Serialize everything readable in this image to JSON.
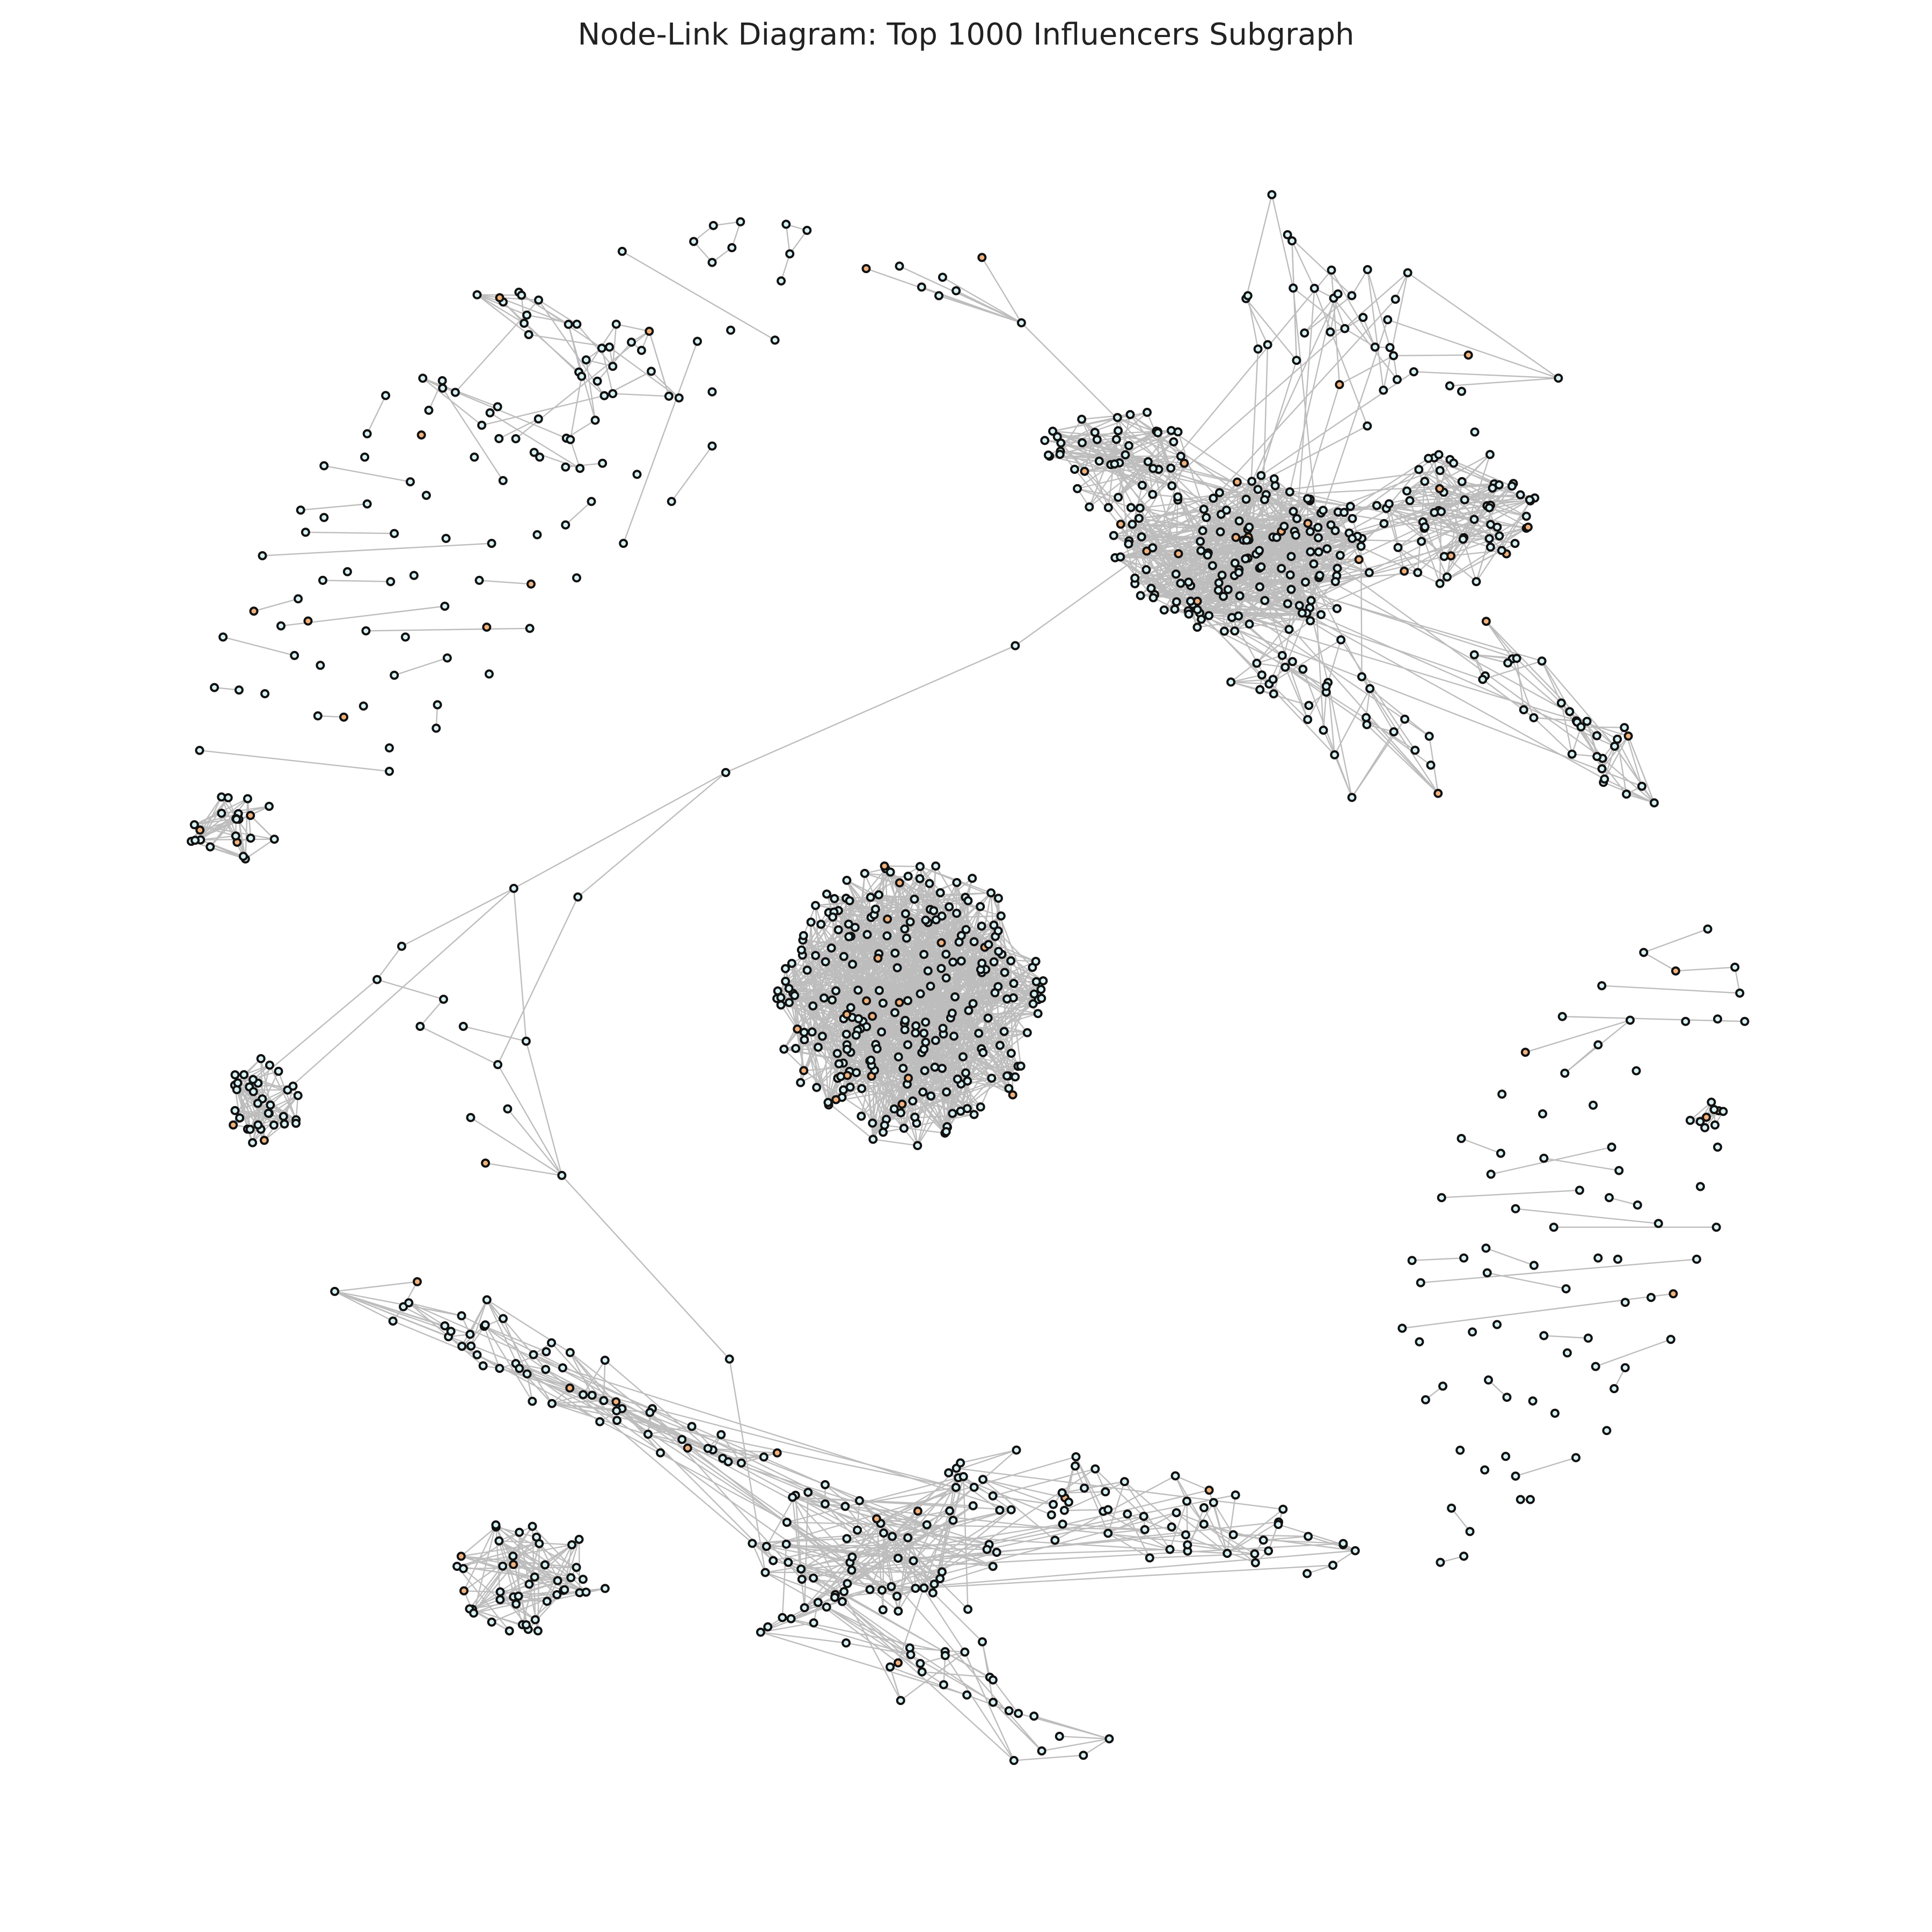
{
  "title": "Node-Link Diagram: Top 1000 Influencers Subgraph",
  "colors": {
    "background": "#ffffff",
    "edge": "#bdbdbd",
    "node_stroke": "#111111",
    "node_fill_primary": "#d6f1f3",
    "node_fill_accent": "#f2b27c"
  },
  "graph": {
    "edge_style": "thin gray lines",
    "node_style": "small circles with dark outline",
    "groups": [
      {
        "name": "cluster-top-right",
        "kind": "dense community"
      },
      {
        "name": "cluster-center",
        "kind": "dense community"
      },
      {
        "name": "cluster-bottom-spread",
        "kind": "elongated community"
      },
      {
        "name": "cluster-left-small",
        "kind": "small community"
      },
      {
        "name": "cluster-bottom-left-small",
        "kind": "small community"
      },
      {
        "name": "cluster-far-left-small",
        "kind": "small community"
      },
      {
        "name": "cluster-right-small",
        "kind": "small community"
      },
      {
        "name": "periphery-scatter",
        "kind": "sparse nodes and pairs"
      }
    ]
  }
}
